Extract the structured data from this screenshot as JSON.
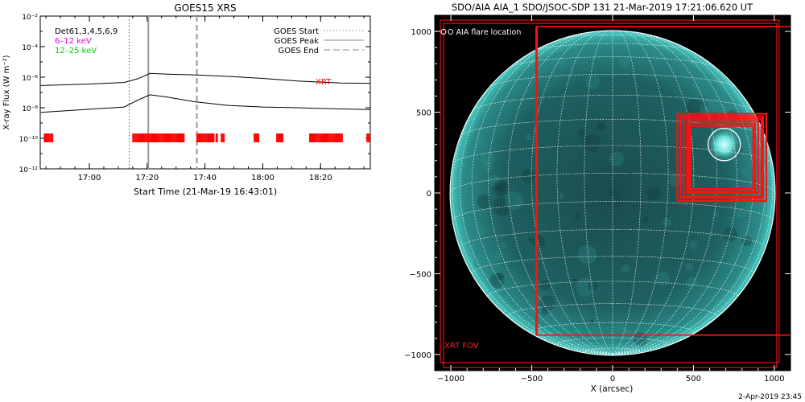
{
  "footer_timestamp": "2-Apr-2019 23:45",
  "chart_data": [
    {
      "type": "line",
      "title": "GOES15 XRS",
      "xlabel": "Start Time (21-Mar-19 16:43:01)",
      "ylabel": "X-ray Flux (W m⁻²)",
      "y_scale": "log",
      "ylim_exponent": [
        -12,
        -2
      ],
      "y_ticks": [
        {
          "exp": -2,
          "label": "10⁻²"
        },
        {
          "exp": -4,
          "label": "10⁻⁴"
        },
        {
          "exp": -6,
          "label": "10⁻⁶"
        },
        {
          "exp": -8,
          "label": "10⁻⁸"
        },
        {
          "exp": -10,
          "label": "10⁻¹⁰"
        },
        {
          "exp": -12,
          "label": "10⁻¹²"
        }
      ],
      "x_ticks": [
        "17:00",
        "17:20",
        "17:40",
        "18:00",
        "18:20"
      ],
      "legend_top_left": [
        {
          "text": "Det61,3,4,5,6,9",
          "color": "#000000"
        },
        {
          "text": "6–12 keV",
          "color": "#e000e0"
        },
        {
          "text": "12–25 keV",
          "color": "#00d000"
        }
      ],
      "legend_top_right": [
        {
          "label": "GOES Start",
          "style": "dotted"
        },
        {
          "label": "GOES Peak",
          "style": "solid"
        },
        {
          "label": "GOES End",
          "style": "dashed"
        }
      ],
      "annotation": {
        "text": "XRT",
        "color": "#ff0000"
      },
      "series": [
        {
          "values_exp": [
            [
              16.72,
              -6.55
            ],
            [
              17.0,
              -6.45
            ],
            [
              17.2,
              -6.35
            ],
            [
              17.28,
              -6.1
            ],
            [
              17.35,
              -5.75
            ],
            [
              17.45,
              -5.8
            ],
            [
              17.6,
              -5.85
            ],
            [
              17.8,
              -5.95
            ],
            [
              18.0,
              -6.08
            ],
            [
              18.2,
              -6.25
            ],
            [
              18.45,
              -6.38
            ],
            [
              18.62,
              -6.4
            ]
          ]
        },
        {
          "values_exp": [
            [
              16.72,
              -8.3
            ],
            [
              17.0,
              -8.1
            ],
            [
              17.2,
              -7.95
            ],
            [
              17.28,
              -7.5
            ],
            [
              17.35,
              -7.15
            ],
            [
              17.45,
              -7.3
            ],
            [
              17.6,
              -7.6
            ],
            [
              17.8,
              -7.85
            ],
            [
              18.0,
              -7.95
            ],
            [
              18.2,
              -8.0
            ],
            [
              18.45,
              -8.08
            ],
            [
              18.62,
              -8.12
            ]
          ]
        }
      ],
      "event_lines_hours": {
        "start": 17.23,
        "peak": 17.34,
        "end": 17.62
      },
      "xrt_intervals_hours": [
        [
          16.74,
          16.79
        ],
        [
          17.25,
          17.55
        ],
        [
          17.62,
          17.72
        ],
        [
          17.73,
          17.74
        ],
        [
          17.76,
          17.78
        ],
        [
          17.95,
          17.98
        ],
        [
          18.08,
          18.12
        ],
        [
          18.27,
          18.46
        ],
        [
          18.6,
          18.62
        ]
      ]
    },
    {
      "type": "scatter",
      "title": "SDO/AIA AIA_1 SDO/JSOC-SDP 131 21-Mar-2019 17:21:06.620 UT",
      "xlabel": "X (arcsec)",
      "ylabel": "",
      "xlim": [
        -1100,
        1100
      ],
      "ylim": [
        -1100,
        1100
      ],
      "x_ticks": [
        -1000,
        -500,
        0,
        500,
        1000
      ],
      "y_ticks": [
        1000,
        500,
        0,
        -500,
        -1000
      ],
      "legend": "O AIA flare location",
      "fov_label": "XRT FOV",
      "solar_radius_arcsec": 1005,
      "flare_location_arcsec": [
        690,
        300
      ],
      "flare_circle_radius_arcsec": 100,
      "fov_boxes_arcsec": [
        [
          -1065,
          -1050,
          1030,
          1070
        ],
        [
          -1045,
          -1080,
          1015,
          1050
        ],
        [
          -470,
          -880,
          1120,
          1030
        ],
        [
          400,
          -50,
          950,
          490
        ],
        [
          420,
          -30,
          930,
          475
        ],
        [
          440,
          -20,
          920,
          460
        ],
        [
          460,
          0,
          900,
          445
        ],
        [
          470,
          10,
          880,
          430
        ],
        [
          480,
          25,
          870,
          415
        ]
      ]
    }
  ]
}
